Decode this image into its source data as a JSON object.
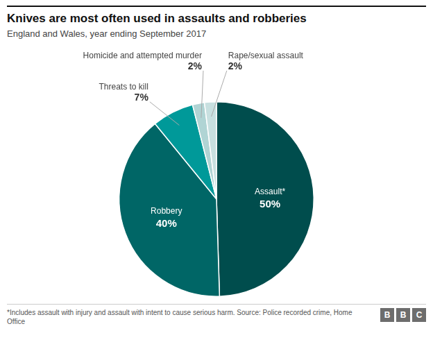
{
  "chart_data": {
    "type": "pie",
    "title": "Knives are most often used in assaults and robberies",
    "subtitle": "England and Wales, year ending September 2017",
    "footnote": "*Includes assault with injury and assault with intent to cause serious harm. Source: Police recorded crime, Home Office",
    "logo": "BBC",
    "categories": [
      "Assault*",
      "Robbery",
      "Threats to kill",
      "Homicide and attempted murder",
      "Rape/sexual assault"
    ],
    "values": [
      50,
      40,
      7,
      2,
      2
    ],
    "value_labels": [
      "50%",
      "40%",
      "7%",
      "2%",
      "2%"
    ],
    "colors": [
      "#004d4d",
      "#006666",
      "#009999",
      "#b0d4d4",
      "#c8e0e0"
    ],
    "data_labels": true
  }
}
